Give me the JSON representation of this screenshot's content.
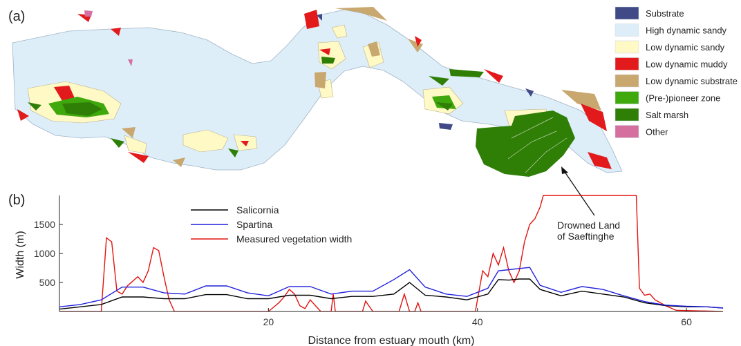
{
  "panel_a": {
    "label": "(a)",
    "legend": [
      {
        "name": "Substrate",
        "color": "#3f4a86"
      },
      {
        "name": "High dynamic sandy",
        "color": "#ddeef9"
      },
      {
        "name": "Low dynamic sandy",
        "color": "#fff9c6"
      },
      {
        "name": "Low dynamic muddy",
        "color": "#e31a1c"
      },
      {
        "name": "Low dynamic substrate",
        "color": "#c9a86f"
      },
      {
        "name": "(Pre-)pioneer zone",
        "color": "#3fa80c"
      },
      {
        "name": "Salt marsh",
        "color": "#2f7f07"
      },
      {
        "name": "Other",
        "color": "#d46fa0"
      }
    ],
    "annotation": [
      "Drowned Land",
      "of Saeftinghe"
    ]
  },
  "chart_data": {
    "type": "line",
    "panel_label": "(b)",
    "title": "",
    "xlabel": "Distance from estuary mouth (km)",
    "ylabel": "Width (m)",
    "xlim": [
      0,
      63.5
    ],
    "ylim": [
      0,
      2000
    ],
    "xticks": [
      20,
      40,
      60
    ],
    "yticks": [
      500,
      1000,
      1500
    ],
    "legend_position": "top-left",
    "grid": false,
    "series": [
      {
        "name": "Salicornia",
        "color": "#000000",
        "x": [
          0,
          2,
          4,
          6,
          8,
          10,
          12,
          14,
          16,
          18,
          20,
          22,
          24,
          26,
          28,
          30,
          32,
          33.5,
          35,
          37,
          39,
          41,
          42,
          43,
          44,
          45,
          46,
          48,
          50,
          52,
          54,
          56,
          58,
          60,
          62,
          63.5
        ],
        "y": [
          40,
          80,
          120,
          250,
          250,
          220,
          220,
          290,
          290,
          220,
          220,
          280,
          280,
          220,
          260,
          260,
          300,
          500,
          280,
          250,
          200,
          300,
          550,
          540,
          560,
          560,
          380,
          270,
          350,
          300,
          250,
          150,
          100,
          80,
          80,
          60
        ]
      },
      {
        "name": "Spartina",
        "color": "#1f1fdc",
        "x": [
          0,
          2,
          4,
          6,
          8,
          10,
          12,
          14,
          16,
          18,
          20,
          22,
          24,
          26,
          28,
          30,
          32,
          33.5,
          35,
          37,
          39,
          41,
          42,
          43,
          44,
          45,
          46,
          48,
          50,
          52,
          54,
          56,
          58,
          60,
          62,
          63.5
        ],
        "y": [
          80,
          120,
          200,
          420,
          420,
          320,
          300,
          440,
          440,
          320,
          270,
          430,
          430,
          300,
          350,
          350,
          550,
          720,
          420,
          300,
          260,
          400,
          700,
          720,
          740,
          760,
          450,
          330,
          430,
          380,
          270,
          170,
          110,
          90,
          80,
          60
        ]
      },
      {
        "name": "Measured vegetation width",
        "color": "#e3120f",
        "x": [
          0,
          4,
          4.5,
          5,
          5.5,
          6,
          6.5,
          7,
          7.5,
          8,
          8.5,
          9,
          9.5,
          10,
          10.5,
          11,
          11.5,
          12,
          20,
          21,
          21.5,
          22,
          22.5,
          23,
          23.5,
          24,
          24.5,
          25,
          26,
          26.2,
          26.4,
          27,
          29,
          29.3,
          29.6,
          30,
          32.5,
          33,
          33.5,
          34,
          34.3,
          34.6,
          35,
          39.8,
          40,
          40.5,
          41,
          41.5,
          42,
          42.5,
          43,
          43.5,
          44,
          44.5,
          45,
          45.5,
          46,
          46.3,
          46.6,
          47,
          47.2,
          47.5,
          48,
          55,
          55.2,
          55.5,
          56,
          56.5,
          57,
          57.5,
          58,
          58.5,
          59,
          63.5
        ],
        "y": [
          0,
          0,
          1270,
          1200,
          350,
          300,
          440,
          520,
          600,
          500,
          700,
          1100,
          1050,
          600,
          200,
          0,
          0,
          0,
          0,
          150,
          250,
          380,
          300,
          100,
          50,
          200,
          100,
          0,
          0,
          300,
          0,
          0,
          0,
          180,
          100,
          0,
          0,
          300,
          0,
          0,
          150,
          0,
          0,
          0,
          200,
          700,
          600,
          1000,
          800,
          1100,
          700,
          500,
          700,
          1200,
          1500,
          1600,
          1800,
          2000,
          2000,
          2000,
          2000,
          2000,
          2000,
          2000,
          2000,
          400,
          280,
          300,
          200,
          150,
          100,
          60,
          20,
          0
        ]
      }
    ]
  }
}
